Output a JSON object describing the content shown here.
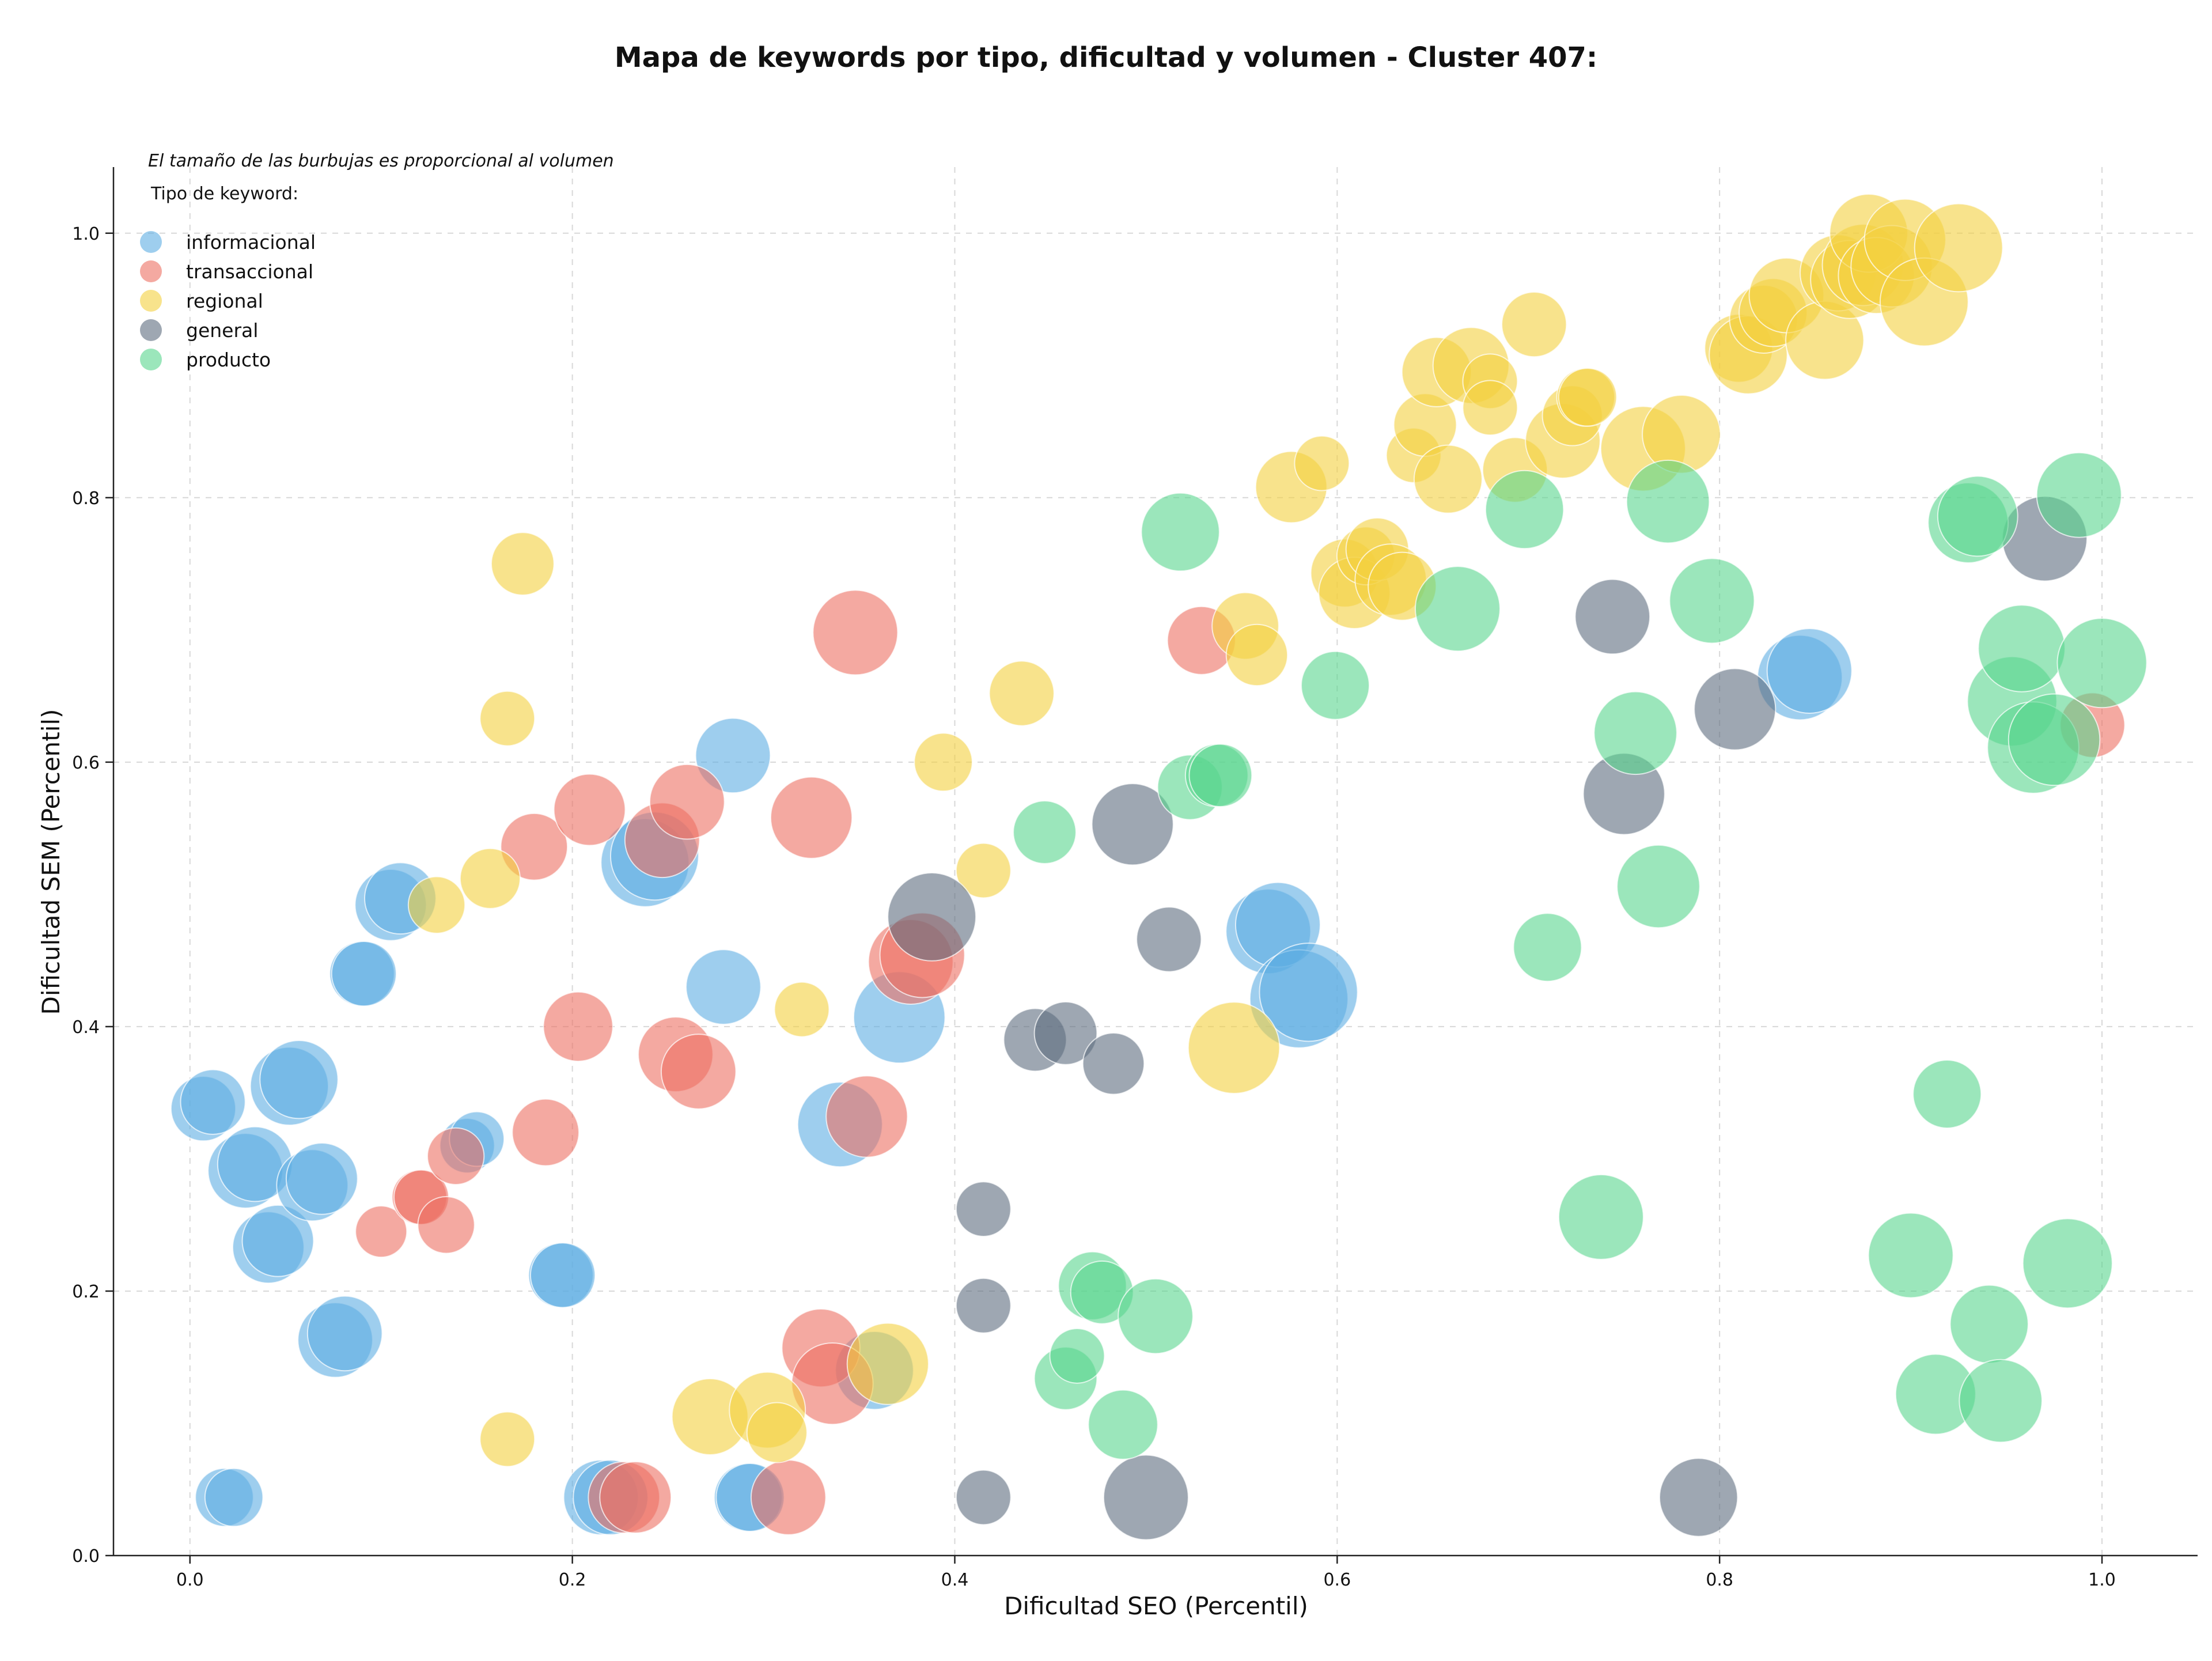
{
  "chart_data": {
    "type": "scatter",
    "title": "Mapa de keywords por tipo, dificultad y volumen - Cluster 407:",
    "xlabel": "Dificultad SEO (Percentil)",
    "ylabel": "Dificultad SEM (Percentil)",
    "xlim": [
      -0.04,
      1.05
    ],
    "ylim": [
      0.0,
      1.05
    ],
    "xticks": [
      "0.0",
      "0.2",
      "0.4",
      "0.6",
      "0.8",
      "1.0"
    ],
    "yticks": [
      "0.0",
      "0.2",
      "0.4",
      "0.6",
      "0.8",
      "1.0"
    ],
    "grid": true,
    "note": "El tamaño de las burbujas es proporcional al volumen",
    "legend": {
      "title": "Tipo de keyword:",
      "placement": "top-left"
    },
    "series": [
      {
        "name": "informacional",
        "color": "#5dade2",
        "points": [
          [
            0.007,
            0.338,
            0.45
          ],
          [
            0.012,
            0.343,
            0.45
          ],
          [
            0.018,
            0.044,
            0.35
          ],
          [
            0.023,
            0.044,
            0.35
          ],
          [
            0.029,
            0.291,
            0.6
          ],
          [
            0.034,
            0.296,
            0.6
          ],
          [
            0.041,
            0.233,
            0.55
          ],
          [
            0.046,
            0.238,
            0.55
          ],
          [
            0.052,
            0.355,
            0.65
          ],
          [
            0.057,
            0.36,
            0.65
          ],
          [
            0.064,
            0.28,
            0.55
          ],
          [
            0.069,
            0.285,
            0.55
          ],
          [
            0.076,
            0.163,
            0.6
          ],
          [
            0.081,
            0.168,
            0.6
          ],
          [
            0.09,
            0.44,
            0.45
          ],
          [
            0.091,
            0.44,
            0.45
          ],
          [
            0.105,
            0.492,
            0.55
          ],
          [
            0.11,
            0.497,
            0.55
          ],
          [
            0.145,
            0.31,
            0.3
          ],
          [
            0.15,
            0.315,
            0.3
          ],
          [
            0.194,
            0.212,
            0.45
          ],
          [
            0.195,
            0.212,
            0.45
          ],
          [
            0.215,
            0.044,
            0.6
          ],
          [
            0.22,
            0.044,
            0.6
          ],
          [
            0.238,
            0.524,
            0.8
          ],
          [
            0.243,
            0.529,
            0.8
          ],
          [
            0.279,
            0.43,
            0.6
          ],
          [
            0.284,
            0.605,
            0.6
          ],
          [
            0.292,
            0.044,
            0.5
          ],
          [
            0.293,
            0.044,
            0.5
          ],
          [
            0.34,
            0.326,
            0.75
          ],
          [
            0.358,
            0.14,
            0.65
          ],
          [
            0.371,
            0.407,
            0.85
          ],
          [
            0.564,
            0.472,
            0.75
          ],
          [
            0.569,
            0.477,
            0.75
          ],
          [
            0.58,
            0.421,
            0.95
          ],
          [
            0.585,
            0.426,
            0.95
          ],
          [
            0.842,
            0.664,
            0.75
          ],
          [
            0.847,
            0.669,
            0.75
          ]
        ]
      },
      {
        "name": "transaccional",
        "color": "#ec7063",
        "points": [
          [
            0.1,
            0.245,
            0.25
          ],
          [
            0.12,
            0.271,
            0.3
          ],
          [
            0.121,
            0.271,
            0.3
          ],
          [
            0.134,
            0.25,
            0.33
          ],
          [
            0.139,
            0.302,
            0.33
          ],
          [
            0.18,
            0.536,
            0.48
          ],
          [
            0.186,
            0.32,
            0.48
          ],
          [
            0.203,
            0.4,
            0.52
          ],
          [
            0.209,
            0.564,
            0.55
          ],
          [
            0.227,
            0.044,
            0.55
          ],
          [
            0.233,
            0.044,
            0.55
          ],
          [
            0.247,
            0.541,
            0.6
          ],
          [
            0.254,
            0.379,
            0.6
          ],
          [
            0.26,
            0.57,
            0.6
          ],
          [
            0.266,
            0.366,
            0.6
          ],
          [
            0.313,
            0.044,
            0.6
          ],
          [
            0.325,
            0.558,
            0.7
          ],
          [
            0.33,
            0.157,
            0.65
          ],
          [
            0.336,
            0.13,
            0.7
          ],
          [
            0.348,
            0.698,
            0.75
          ],
          [
            0.354,
            0.332,
            0.7
          ],
          [
            0.377,
            0.449,
            0.75
          ],
          [
            0.383,
            0.454,
            0.75
          ],
          [
            0.529,
            0.692,
            0.5
          ],
          [
            0.995,
            0.628,
            0.45
          ]
        ]
      },
      {
        "name": "regional",
        "color": "#f4d03f",
        "points": [
          [
            0.129,
            0.492,
            0.33
          ],
          [
            0.157,
            0.512,
            0.38
          ],
          [
            0.166,
            0.633,
            0.3
          ],
          [
            0.166,
            0.088,
            0.3
          ],
          [
            0.174,
            0.75,
            0.42
          ],
          [
            0.272,
            0.105,
            0.62
          ],
          [
            0.302,
            0.11,
            0.62
          ],
          [
            0.307,
            0.093,
            0.38
          ],
          [
            0.32,
            0.413,
            0.3
          ],
          [
            0.365,
            0.145,
            0.7
          ],
          [
            0.394,
            0.6,
            0.35
          ],
          [
            0.415,
            0.518,
            0.3
          ],
          [
            0.435,
            0.652,
            0.45
          ],
          [
            0.546,
            0.384,
            0.85
          ],
          [
            0.552,
            0.703,
            0.48
          ],
          [
            0.558,
            0.681,
            0.4
          ],
          [
            0.576,
            0.808,
            0.55
          ],
          [
            0.592,
            0.826,
            0.3
          ],
          [
            0.604,
            0.743,
            0.5
          ],
          [
            0.609,
            0.728,
            0.55
          ],
          [
            0.615,
            0.756,
            0.35
          ],
          [
            0.621,
            0.761,
            0.42
          ],
          [
            0.628,
            0.738,
            0.55
          ],
          [
            0.634,
            0.733,
            0.5
          ],
          [
            0.64,
            0.832,
            0.3
          ],
          [
            0.646,
            0.855,
            0.42
          ],
          [
            0.652,
            0.895,
            0.52
          ],
          [
            0.658,
            0.814,
            0.5
          ],
          [
            0.67,
            0.9,
            0.62
          ],
          [
            0.68,
            0.888,
            0.3
          ],
          [
            0.68,
            0.868,
            0.3
          ],
          [
            0.693,
            0.821,
            0.45
          ],
          [
            0.703,
            0.931,
            0.45
          ],
          [
            0.718,
            0.843,
            0.6
          ],
          [
            0.723,
            0.862,
            0.38
          ],
          [
            0.73,
            0.876,
            0.35
          ],
          [
            0.731,
            0.876,
            0.35
          ],
          [
            0.76,
            0.837,
            0.75
          ],
          [
            0.78,
            0.848,
            0.65
          ],
          [
            0.81,
            0.913,
            0.5
          ],
          [
            0.815,
            0.908,
            0.65
          ],
          [
            0.823,
            0.935,
            0.5
          ],
          [
            0.828,
            0.94,
            0.5
          ],
          [
            0.835,
            0.953,
            0.6
          ],
          [
            0.855,
            0.919,
            0.65
          ],
          [
            0.862,
            0.97,
            0.62
          ],
          [
            0.868,
            0.965,
            0.65
          ],
          [
            0.875,
            0.976,
            0.7
          ],
          [
            0.878,
            1.0,
            0.65
          ],
          [
            0.882,
            0.968,
            0.62
          ],
          [
            0.89,
            0.975,
            0.7
          ],
          [
            0.897,
            0.995,
            0.7
          ],
          [
            0.907,
            0.948,
            0.8
          ],
          [
            0.925,
            0.989,
            0.8
          ]
        ]
      },
      {
        "name": "general",
        "color": "#5d6d7e",
        "points": [
          [
            0.388,
            0.483,
            0.8
          ],
          [
            0.415,
            0.262,
            0.3
          ],
          [
            0.415,
            0.189,
            0.3
          ],
          [
            0.415,
            0.044,
            0.3
          ],
          [
            0.442,
            0.39,
            0.42
          ],
          [
            0.458,
            0.395,
            0.42
          ],
          [
            0.483,
            0.372,
            0.4
          ],
          [
            0.493,
            0.553,
            0.7
          ],
          [
            0.5,
            0.044,
            0.75
          ],
          [
            0.512,
            0.466,
            0.45
          ],
          [
            0.744,
            0.71,
            0.6
          ],
          [
            0.75,
            0.576,
            0.7
          ],
          [
            0.789,
            0.044,
            0.65
          ],
          [
            0.808,
            0.64,
            0.7
          ],
          [
            0.97,
            0.769,
            0.75
          ]
        ]
      },
      {
        "name": "producto",
        "color": "#58d68d",
        "points": [
          [
            0.447,
            0.547,
            0.42
          ],
          [
            0.458,
            0.134,
            0.42
          ],
          [
            0.464,
            0.151,
            0.3
          ],
          [
            0.472,
            0.204,
            0.5
          ],
          [
            0.477,
            0.199,
            0.42
          ],
          [
            0.488,
            0.099,
            0.52
          ],
          [
            0.505,
            0.181,
            0.6
          ],
          [
            0.518,
            0.774,
            0.65
          ],
          [
            0.523,
            0.581,
            0.45
          ],
          [
            0.537,
            0.59,
            0.42
          ],
          [
            0.539,
            0.59,
            0.42
          ],
          [
            0.599,
            0.658,
            0.5
          ],
          [
            0.663,
            0.716,
            0.75
          ],
          [
            0.698,
            0.791,
            0.65
          ],
          [
            0.71,
            0.46,
            0.5
          ],
          [
            0.738,
            0.256,
            0.75
          ],
          [
            0.756,
            0.622,
            0.72
          ],
          [
            0.768,
            0.506,
            0.72
          ],
          [
            0.773,
            0.797,
            0.72
          ],
          [
            0.796,
            0.722,
            0.75
          ],
          [
            0.9,
            0.227,
            0.75
          ],
          [
            0.913,
            0.122,
            0.68
          ],
          [
            0.919,
            0.349,
            0.5
          ],
          [
            0.93,
            0.781,
            0.68
          ],
          [
            0.935,
            0.786,
            0.68
          ],
          [
            0.941,
            0.175,
            0.65
          ],
          [
            0.947,
            0.117,
            0.72
          ],
          [
            0.953,
            0.646,
            0.82
          ],
          [
            0.958,
            0.686,
            0.78
          ],
          [
            0.964,
            0.611,
            0.85
          ],
          [
            0.975,
            0.617,
            0.85
          ],
          [
            0.982,
            0.221,
            0.82
          ],
          [
            0.988,
            0.802,
            0.75
          ],
          [
            1.0,
            0.675,
            0.82
          ]
        ]
      }
    ]
  }
}
